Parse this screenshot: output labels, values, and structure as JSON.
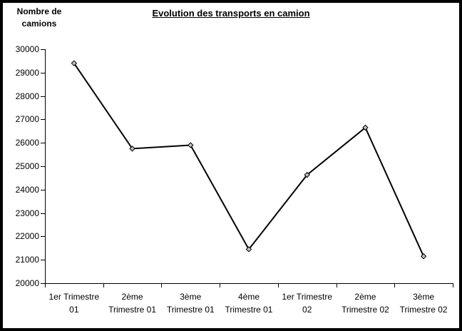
{
  "window": {
    "background_color": "#ffffff",
    "border_color": "#000000"
  },
  "chart_data": {
    "type": "line",
    "title": "Evolution des transports en camion",
    "y_axis_title_lines": [
      "Nombre de",
      "camions"
    ],
    "xlabel": "",
    "ylabel": "Nombre de camions",
    "categories": [
      "1er Trimestre 01",
      "2ème Trimestre 01",
      "3ème Trimestre 01",
      "4ème Trimestre 01",
      "1er Trimestre 02",
      "2ème Trimestre 02",
      "3ème Trimestre 02"
    ],
    "category_label_lines": [
      [
        "1er Trimestre",
        "01"
      ],
      [
        "2ème",
        "Trimestre 01"
      ],
      [
        "3ème",
        "Trimestre 01"
      ],
      [
        "4ème",
        "Trimestre 01"
      ],
      [
        "1er Trimestre",
        "02"
      ],
      [
        "2ème",
        "Trimestre 02"
      ],
      [
        "3ème",
        "Trimestre 02"
      ]
    ],
    "series": [
      {
        "name": "Nombre de camions",
        "values": [
          29400,
          25750,
          25900,
          21450,
          24630,
          26650,
          21150
        ]
      }
    ],
    "ylim": [
      20000,
      30000
    ],
    "y_tick_step": 1000,
    "y_tick_labels": [
      "20000",
      "21000",
      "22000",
      "23000",
      "24000",
      "25000",
      "26000",
      "27000",
      "28000",
      "29000",
      "30000"
    ],
    "grid": false,
    "legend_position": "none",
    "line_color": "#000000",
    "axis_color": "#000000",
    "text_color": "#000000",
    "marker": {
      "shape": "diamond",
      "fill": "#c0c0c0",
      "stroke": "#000000"
    }
  }
}
